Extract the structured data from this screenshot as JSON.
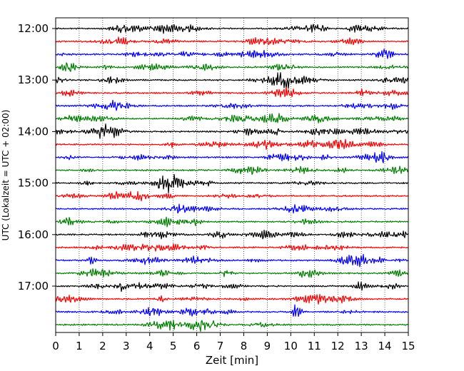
{
  "chart_data": {
    "type": "line",
    "subtype": "helicorder",
    "xlabel": "Zeit  [min]",
    "ylabel": "UTC (Lokalzeit = UTC + 02:00)",
    "xlim": [
      0,
      15
    ],
    "x_ticks": [
      0,
      1,
      2,
      3,
      4,
      5,
      6,
      7,
      8,
      9,
      10,
      11,
      12,
      13,
      14,
      15
    ],
    "y_tick_labels": [
      "12:00",
      "13:00",
      "14:00",
      "15:00",
      "16:00",
      "17:00"
    ],
    "trace_start_times": [
      "12:00",
      "12:15",
      "12:30",
      "12:45",
      "13:00",
      "13:15",
      "13:30",
      "13:45",
      "14:00",
      "14:15",
      "14:30",
      "14:45",
      "15:00",
      "15:15",
      "15:30",
      "15:45",
      "16:00",
      "16:15",
      "16:30",
      "16:45",
      "17:00",
      "17:15",
      "17:30",
      "17:45"
    ],
    "trace_colors": [
      "#000000",
      "#ff0000",
      "#0000ff",
      "#007f00"
    ],
    "vertical_grid": true,
    "grid_style": "dotted"
  }
}
